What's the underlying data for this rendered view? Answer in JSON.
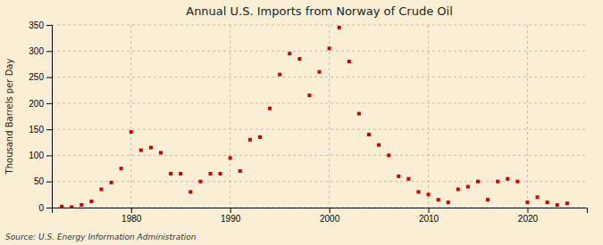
{
  "chart_data": {
    "type": "scatter",
    "title": "Annual U.S. Imports from Norway of Crude Oil",
    "ylabel": "Thousand Barrels per Day",
    "source": "Source: U.S. Energy Information Administration",
    "color": "#cc0000",
    "marker": "square",
    "grid": true,
    "xlim": [
      1972,
      2026
    ],
    "ylim": [
      0,
      350
    ],
    "xticks": [
      1980,
      1990,
      2000,
      2010,
      2020
    ],
    "yticks": [
      0,
      50,
      100,
      150,
      200,
      250,
      300,
      350
    ],
    "x": [
      1973,
      1974,
      1975,
      1976,
      1977,
      1978,
      1979,
      1980,
      1981,
      1982,
      1983,
      1984,
      1985,
      1986,
      1987,
      1988,
      1989,
      1990,
      1991,
      1992,
      1993,
      1994,
      1995,
      1996,
      1997,
      1998,
      1999,
      2000,
      2001,
      2002,
      2003,
      2004,
      2005,
      2006,
      2007,
      2008,
      2009,
      2010,
      2011,
      2012,
      2013,
      2014,
      2015,
      2016,
      2017,
      2018,
      2019,
      2020,
      2021,
      2022,
      2023,
      2024
    ],
    "values": [
      2,
      1,
      5,
      12,
      35,
      48,
      75,
      145,
      110,
      115,
      105,
      65,
      65,
      30,
      50,
      65,
      65,
      95,
      70,
      130,
      135,
      190,
      255,
      295,
      285,
      215,
      260,
      305,
      345,
      280,
      180,
      140,
      120,
      100,
      60,
      55,
      30,
      25,
      15,
      10,
      35,
      40,
      50,
      15,
      50,
      55,
      50,
      10,
      20,
      10,
      5,
      8
    ]
  }
}
